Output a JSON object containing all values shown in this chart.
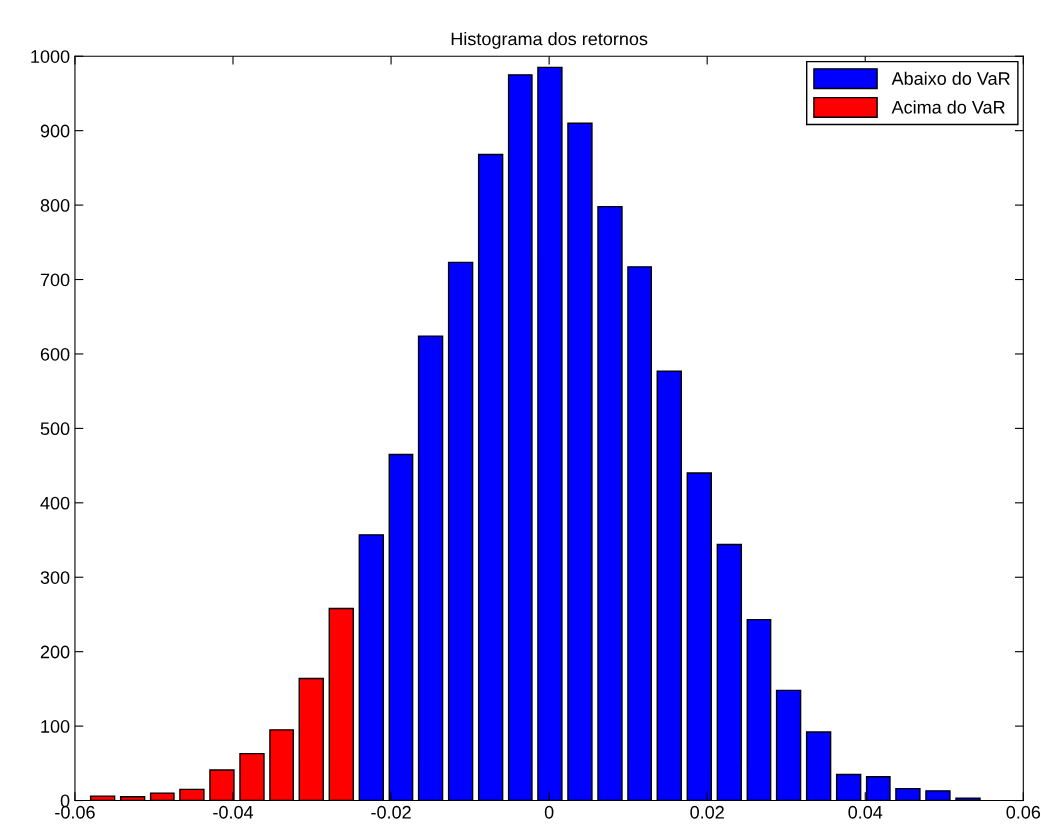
{
  "chart_data": {
    "type": "histogram",
    "title": "Histograma dos retornos",
    "bins": [
      -0.0584,
      -0.0546,
      -0.0508,
      -0.0471,
      -0.0433,
      -0.0395,
      -0.0357,
      -0.032,
      -0.0282,
      -0.0244,
      -0.0206,
      -0.0169,
      -0.0131,
      -0.0093,
      -0.0055,
      -0.0018,
      0.002,
      0.0058,
      0.0096,
      0.0133,
      0.0171,
      0.0209,
      0.0247,
      0.0284,
      0.0322,
      0.036,
      0.0398,
      0.0435,
      0.0473,
      0.0511,
      0.0549
    ],
    "series": [
      {
        "name": "Abaixo do VaR",
        "color": "#0000ff",
        "values": [
          null,
          null,
          null,
          null,
          null,
          null,
          null,
          null,
          null,
          357,
          465,
          624,
          723,
          868,
          975,
          985,
          910,
          798,
          717,
          577,
          440,
          344,
          243,
          148,
          92,
          35,
          32,
          16,
          13,
          3
        ]
      },
      {
        "name": "Acima do VaR",
        "color": "#ff0000",
        "values": [
          6,
          5,
          10,
          15,
          41,
          63,
          95,
          164,
          258,
          null,
          null,
          null,
          null,
          null,
          null,
          null,
          null,
          null,
          null,
          null,
          null,
          null,
          null,
          null,
          null,
          null,
          null,
          null,
          null,
          null
        ]
      }
    ],
    "xlim": [
      -0.06,
      0.06
    ],
    "xticks": [
      -0.06,
      -0.04,
      -0.02,
      0,
      0.02,
      0.04,
      0.06
    ],
    "ylim": [
      0,
      1000
    ],
    "yticks": [
      0,
      100,
      200,
      300,
      400,
      500,
      600,
      700,
      800,
      900,
      1000
    ],
    "grid": false,
    "legend": "top right"
  }
}
